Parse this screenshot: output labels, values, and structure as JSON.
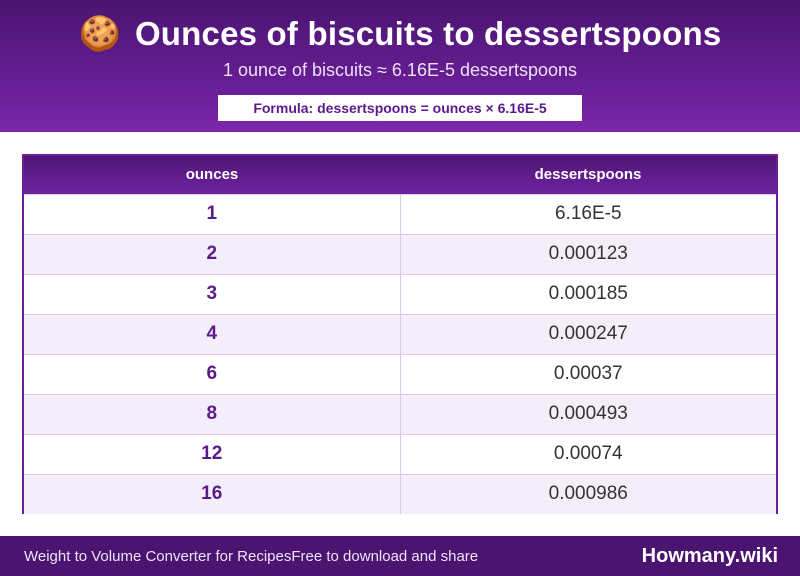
{
  "header": {
    "icon": "cookie-icon",
    "icon_glyph": "🍪",
    "title": "Ounces of biscuits to dessertspoons",
    "subtitle": "1 ounce of biscuits ≈ 6.16E-5 dessertspoons",
    "formula": "Formula: dessertspoons = ounces × 6.16E-5"
  },
  "table": {
    "columns": [
      "ounces",
      "dessertspoons"
    ],
    "rows": [
      {
        "ounces": "1",
        "dessertspoons": "6.16E-5"
      },
      {
        "ounces": "2",
        "dessertspoons": "0.000123"
      },
      {
        "ounces": "3",
        "dessertspoons": "0.000185"
      },
      {
        "ounces": "4",
        "dessertspoons": "0.000247"
      },
      {
        "ounces": "6",
        "dessertspoons": "0.00037"
      },
      {
        "ounces": "8",
        "dessertspoons": "0.000493"
      },
      {
        "ounces": "12",
        "dessertspoons": "0.00074"
      },
      {
        "ounces": "16",
        "dessertspoons": "0.000986"
      }
    ]
  },
  "footer": {
    "left_a": "Weight to Volume Converter for Recipes",
    "left_b": "Free to download and share",
    "brand": "Howmany.wiki"
  },
  "colors": {
    "brand_purple": "#6a1f98",
    "dark_purple": "#4a1470",
    "row_alt": "#f4eefa"
  }
}
